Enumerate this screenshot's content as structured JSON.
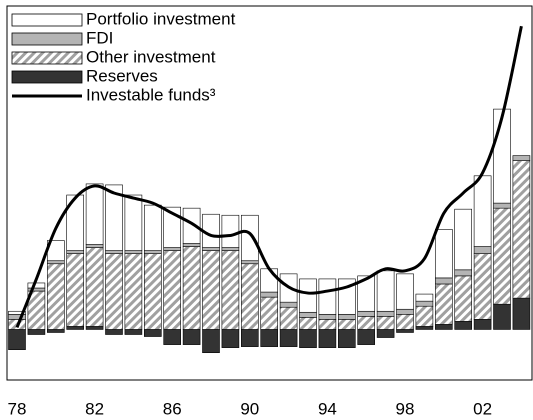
{
  "chart_data": {
    "type": "bar",
    "stacked": true,
    "categories": [
      "78",
      null,
      null,
      null,
      "82",
      null,
      null,
      null,
      "86",
      null,
      null,
      null,
      "90",
      null,
      null,
      null,
      "94",
      null,
      null,
      null,
      "98",
      null,
      null,
      null,
      "02",
      null,
      null
    ],
    "ylim": [
      -5,
      32
    ],
    "legend": "top-left",
    "series": [
      {
        "name": "Portfolio investment",
        "type": "bar",
        "color": "#ffffff",
        "values": [
          0.3,
          0.5,
          2.0,
          5.5,
          6.0,
          6.5,
          5.5,
          4.5,
          4.0,
          3.5,
          3.3,
          3.2,
          4.5,
          2.3,
          2.8,
          3.3,
          3.5,
          3.5,
          3.5,
          4.0,
          3.5,
          0.7,
          4.8,
          6.0,
          7.0,
          9.3,
          0
        ]
      },
      {
        "name": "FDI",
        "type": "bar",
        "color": "#b4b4b4",
        "values": [
          0.5,
          0.3,
          0.3,
          0.3,
          0.3,
          0.3,
          0.3,
          0.3,
          0.3,
          0.3,
          0.3,
          0.3,
          0.3,
          0.5,
          0.5,
          0.5,
          0.5,
          0.5,
          0.5,
          0.5,
          0.5,
          0.5,
          0.6,
          0.6,
          0.7,
          0.5,
          0.5
        ]
      },
      {
        "name": "Other investment",
        "type": "bar",
        "color": "#a0a0a0",
        "hatch": true,
        "values": [
          1.0,
          3.8,
          6.5,
          7.2,
          7.8,
          7.5,
          7.5,
          7.5,
          7.8,
          8.2,
          7.8,
          7.8,
          6.5,
          3.2,
          2.2,
          1.2,
          1.0,
          1.0,
          1.3,
          1.3,
          1.5,
          2.0,
          4.0,
          4.5,
          6.5,
          9.5,
          13.6
        ]
      },
      {
        "name": "Reserves",
        "type": "bar",
        "color": "#333333",
        "values": [
          -2.0,
          -0.5,
          -0.3,
          0.3,
          0.3,
          -0.5,
          -0.5,
          -0.7,
          -1.5,
          -1.5,
          -2.3,
          -1.8,
          -1.7,
          -1.7,
          -1.7,
          -1.8,
          -1.8,
          -1.8,
          -1.5,
          -0.8,
          -0.3,
          0.3,
          0.5,
          0.8,
          1.0,
          2.5,
          3.1
        ]
      },
      {
        "name": "Investable funds³",
        "type": "line",
        "color": "#000000",
        "values": [
          0.2,
          5,
          10,
          13,
          14.2,
          13.5,
          13,
          12.5,
          11.5,
          10.5,
          9.3,
          9.3,
          9.5,
          6,
          4.2,
          3.6,
          3.8,
          4.2,
          5.0,
          6.0,
          5.8,
          7.0,
          11.5,
          13.5,
          15.5,
          21,
          30
        ]
      }
    ]
  }
}
